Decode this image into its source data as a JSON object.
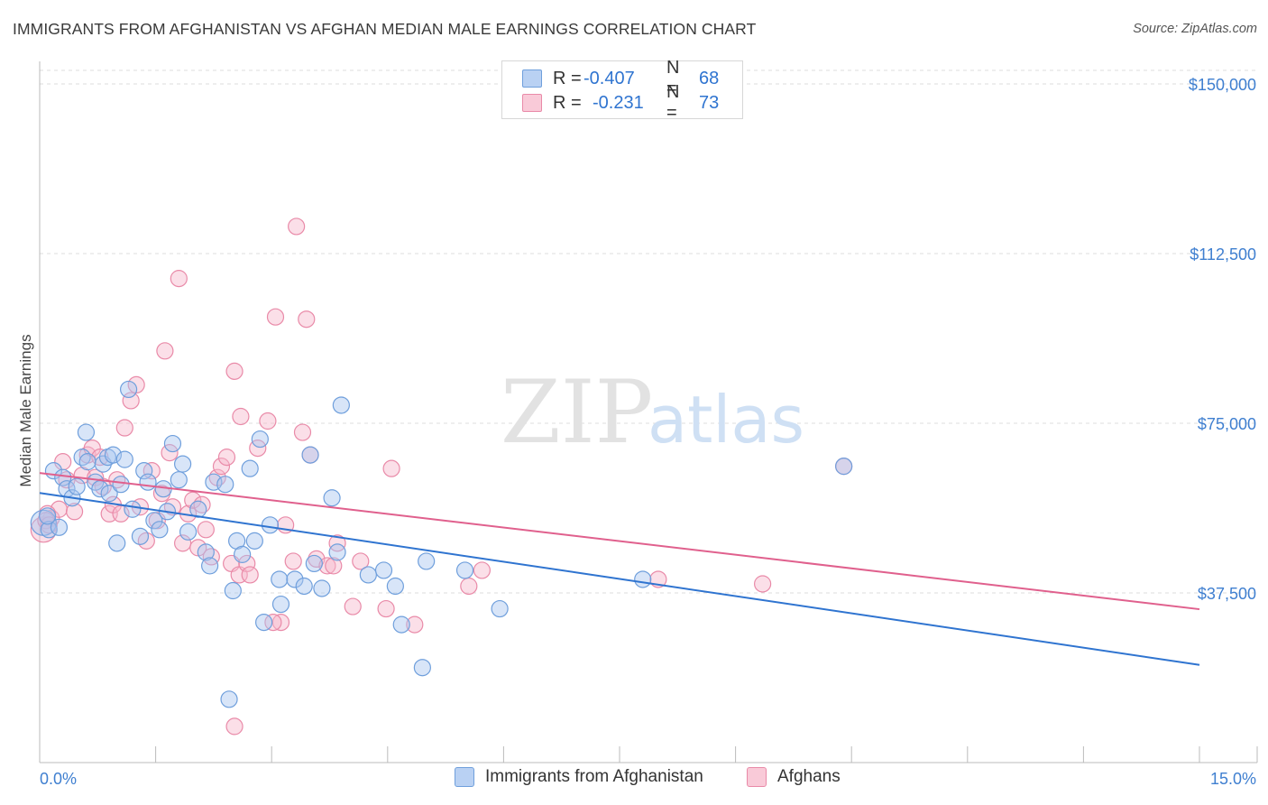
{
  "title": "IMMIGRANTS FROM AFGHANISTAN VS AFGHAN MEDIAN MALE EARNINGS CORRELATION CHART",
  "source": "Source: ZipAtlas.com",
  "watermark": {
    "zip": "ZIP",
    "atlas": "atlas"
  },
  "colors": {
    "blue_fill": "#a9c6ef",
    "blue_stroke": "#6f9fdc",
    "blue_line": "#2f74d0",
    "pink_fill": "#f6b8cb",
    "pink_stroke": "#e98aa8",
    "pink_line": "#e0608d",
    "axis_label": "#3f7fd0",
    "grid": "#dcdcdc"
  },
  "legend_top": [
    {
      "r_label": "R =",
      "r_value": "-0.407",
      "n_label": "N =",
      "n_value": "68",
      "color": "blue"
    },
    {
      "r_label": "R =",
      "r_value": "-0.231",
      "n_label": "N =",
      "n_value": "73",
      "color": "pink"
    }
  ],
  "legend_bottom": [
    {
      "label": "Immigrants from Afghanistan",
      "color": "blue"
    },
    {
      "label": "Afghans",
      "color": "pink"
    }
  ],
  "chart_data": {
    "type": "scatter",
    "title": "IMMIGRANTS FROM AFGHANISTAN VS AFGHAN MEDIAN MALE EARNINGS CORRELATION CHART",
    "xlabel": "",
    "ylabel": "Median Male Earnings",
    "xlim": [
      0,
      15
    ],
    "ylim": [
      0,
      153000
    ],
    "x_tick_labels": [
      "0.0%",
      "15.0%"
    ],
    "y_ticks": [
      37500,
      75000,
      112500,
      150000
    ],
    "y_tick_labels": [
      "$37,500",
      "$75,000",
      "$112,500",
      "$150,000"
    ],
    "grid": true,
    "series": [
      {
        "name": "Immigrants from Afghanistan",
        "color": "blue",
        "regression": {
          "x": [
            0,
            15
          ],
          "y": [
            59600,
            21600
          ]
        },
        "points": [
          [
            0.05,
            53000
          ],
          [
            0.12,
            51500
          ],
          [
            0.1,
            54500
          ],
          [
            0.18,
            64500
          ],
          [
            0.25,
            52000
          ],
          [
            0.3,
            63000
          ],
          [
            0.35,
            60500
          ],
          [
            0.42,
            58500
          ],
          [
            0.48,
            61000
          ],
          [
            0.55,
            67500
          ],
          [
            0.6,
            73000
          ],
          [
            0.62,
            66500
          ],
          [
            0.72,
            62000
          ],
          [
            0.78,
            60500
          ],
          [
            0.82,
            66000
          ],
          [
            0.88,
            67500
          ],
          [
            0.9,
            59500
          ],
          [
            0.95,
            68000
          ],
          [
            1.0,
            48500
          ],
          [
            1.05,
            61500
          ],
          [
            1.1,
            67000
          ],
          [
            1.15,
            82500
          ],
          [
            1.2,
            56000
          ],
          [
            1.3,
            50000
          ],
          [
            1.35,
            64500
          ],
          [
            1.4,
            62000
          ],
          [
            1.48,
            53500
          ],
          [
            1.55,
            51500
          ],
          [
            1.6,
            60500
          ],
          [
            1.65,
            55500
          ],
          [
            1.72,
            70500
          ],
          [
            1.8,
            62500
          ],
          [
            1.85,
            66000
          ],
          [
            1.92,
            51000
          ],
          [
            2.05,
            56000
          ],
          [
            2.15,
            46500
          ],
          [
            2.2,
            43500
          ],
          [
            2.25,
            62000
          ],
          [
            2.4,
            61500
          ],
          [
            2.5,
            38000
          ],
          [
            2.55,
            49000
          ],
          [
            2.62,
            46000
          ],
          [
            2.72,
            65000
          ],
          [
            2.78,
            49000
          ],
          [
            2.85,
            71500
          ],
          [
            2.9,
            31000
          ],
          [
            2.98,
            52500
          ],
          [
            3.1,
            40500
          ],
          [
            3.12,
            35000
          ],
          [
            3.3,
            40500
          ],
          [
            3.42,
            39000
          ],
          [
            3.5,
            68000
          ],
          [
            3.55,
            44000
          ],
          [
            3.65,
            38500
          ],
          [
            3.78,
            58500
          ],
          [
            3.85,
            46500
          ],
          [
            3.9,
            79000
          ],
          [
            4.25,
            41500
          ],
          [
            4.45,
            42500
          ],
          [
            4.6,
            39000
          ],
          [
            4.68,
            30500
          ],
          [
            4.95,
            21000
          ],
          [
            5.0,
            44500
          ],
          [
            5.5,
            42500
          ],
          [
            5.95,
            34000
          ],
          [
            2.45,
            14000
          ],
          [
            7.8,
            40500
          ],
          [
            10.4,
            65500
          ]
        ]
      },
      {
        "name": "Afghans",
        "color": "pink",
        "regression": {
          "x": [
            0,
            15
          ],
          "y": [
            64000,
            33900
          ]
        },
        "points": [
          [
            0.05,
            51500
          ],
          [
            0.15,
            54000
          ],
          [
            0.25,
            56000
          ],
          [
            0.3,
            66500
          ],
          [
            0.35,
            62500
          ],
          [
            0.45,
            55500
          ],
          [
            0.55,
            63500
          ],
          [
            0.62,
            68000
          ],
          [
            0.68,
            69500
          ],
          [
            0.72,
            63000
          ],
          [
            0.78,
            67500
          ],
          [
            0.82,
            61000
          ],
          [
            0.9,
            55000
          ],
          [
            0.95,
            57000
          ],
          [
            1.0,
            62500
          ],
          [
            1.05,
            55000
          ],
          [
            1.1,
            74000
          ],
          [
            1.18,
            80000
          ],
          [
            1.25,
            83500
          ],
          [
            1.3,
            56500
          ],
          [
            1.38,
            49000
          ],
          [
            1.45,
            64500
          ],
          [
            1.52,
            53500
          ],
          [
            1.58,
            59500
          ],
          [
            1.62,
            91000
          ],
          [
            1.68,
            68500
          ],
          [
            1.72,
            56500
          ],
          [
            1.8,
            107000
          ],
          [
            1.85,
            48500
          ],
          [
            1.92,
            55000
          ],
          [
            1.98,
            58000
          ],
          [
            2.05,
            47500
          ],
          [
            2.1,
            57000
          ],
          [
            2.15,
            51500
          ],
          [
            2.22,
            45500
          ],
          [
            2.3,
            63000
          ],
          [
            2.35,
            65500
          ],
          [
            2.42,
            67500
          ],
          [
            2.48,
            44000
          ],
          [
            2.52,
            86500
          ],
          [
            2.58,
            41500
          ],
          [
            2.6,
            76500
          ],
          [
            2.68,
            44000
          ],
          [
            2.72,
            41500
          ],
          [
            2.82,
            69500
          ],
          [
            2.95,
            75500
          ],
          [
            3.05,
            98500
          ],
          [
            3.12,
            31000
          ],
          [
            3.18,
            52500
          ],
          [
            3.28,
            44500
          ],
          [
            3.32,
            118500
          ],
          [
            3.4,
            73000
          ],
          [
            3.45,
            98000
          ],
          [
            3.5,
            68000
          ],
          [
            3.58,
            45000
          ],
          [
            3.72,
            43500
          ],
          [
            3.8,
            43500
          ],
          [
            3.85,
            48500
          ],
          [
            4.05,
            34500
          ],
          [
            4.15,
            44500
          ],
          [
            4.48,
            34000
          ],
          [
            4.55,
            65000
          ],
          [
            4.85,
            30500
          ],
          [
            5.55,
            39000
          ],
          [
            5.72,
            42500
          ],
          [
            8.0,
            40500
          ],
          [
            10.4,
            65500
          ],
          [
            2.52,
            8000
          ],
          [
            9.35,
            39500
          ],
          [
            3.02,
            31000
          ],
          [
            0.1,
            55000
          ],
          [
            0.08,
            53500
          ],
          [
            0.12,
            52500
          ]
        ]
      }
    ]
  }
}
